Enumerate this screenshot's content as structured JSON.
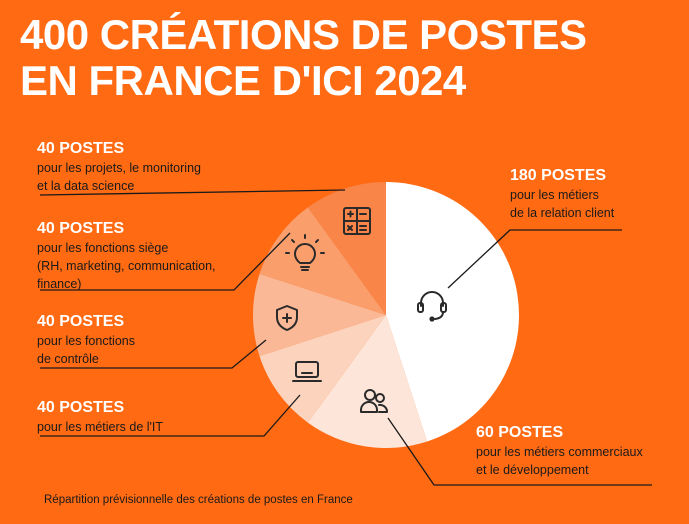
{
  "header": {
    "title_line1": "400 CRÉATIONS DE POSTES",
    "title_line2": "EN FRANCE D'ICI 2024"
  },
  "chart_data": {
    "type": "pie",
    "title": "400 CRÉATIONS DE POSTES EN FRANCE D'ICI 2024",
    "slices": [
      {
        "value": 180,
        "head": "180 POSTES",
        "desc_lines": [
          "pour les métiers",
          "de la relation client"
        ],
        "color": "#ffffff",
        "icon": "headset-icon"
      },
      {
        "value": 60,
        "head": "60 POSTES",
        "desc_lines": [
          "pour les métiers commerciaux",
          "et le développement"
        ],
        "color": "#fde6d9",
        "icon": "users-icon"
      },
      {
        "value": 40,
        "head": "40 POSTES",
        "desc_lines": [
          "pour les métiers de l'IT"
        ],
        "color": "#fcd3bc",
        "icon": "laptop-icon"
      },
      {
        "value": 40,
        "head": "40 POSTES",
        "desc_lines": [
          "pour les fonctions",
          "de contrôle"
        ],
        "color": "#fbb896",
        "icon": "shield-plus-icon"
      },
      {
        "value": 40,
        "head": "40 POSTES",
        "desc_lines": [
          "pour les fonctions siège",
          "(RH, marketing, communication,",
          "finance)"
        ],
        "color": "#fa9e6c",
        "icon": "lightbulb-icon"
      },
      {
        "value": 40,
        "head": "40 POSTES",
        "desc_lines": [
          "pour les projets, le monitoring",
          "et la data science"
        ],
        "color": "#f98549",
        "icon": "calculator-icon"
      }
    ]
  },
  "footnote": "Répartition prévisionnelle des créations de postes en France",
  "colors": {
    "background": "#ff6a13",
    "line": "#1a1a1a",
    "icon": "#2a2a2a"
  }
}
